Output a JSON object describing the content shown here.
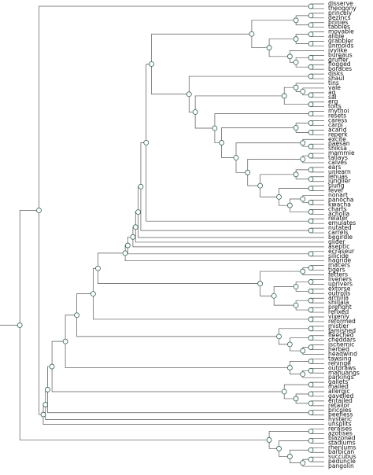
{
  "leaves": [
    "disserve",
    "theogony",
    "princely",
    "dezincs",
    "brinies",
    "tabbies",
    "movable",
    "alible",
    "grabbler",
    "unmolds",
    "ivylike",
    "bureaus",
    "gruffer",
    "flogged",
    "boraces",
    "disks",
    "shaul",
    "tins",
    "vale",
    "ag",
    "sal",
    "erg",
    "toits",
    "mythoi",
    "resets",
    "caress",
    "carpi",
    "acarid",
    "reperk",
    "excite",
    "paesan",
    "shiksa",
    "mammie",
    "tallays",
    "calves",
    "ears",
    "unlearn",
    "lehuas",
    "junglier",
    "slung",
    "fever",
    "nonart",
    "panocha",
    "kwacha",
    "charts",
    "acholia",
    "relater",
    "emulates",
    "nutated",
    "carrels",
    "begirdle",
    "glider",
    "aseptic",
    "ecraseur",
    "silicide",
    "hagride",
    "macers",
    "tigers",
    "fetters",
    "liveners",
    "uprivers",
    "extorse",
    "outrolls",
    "armilla",
    "shillala",
    "prefight",
    "refixed",
    "vixenly",
    "reformed",
    "mistier",
    "famished",
    "fleeched",
    "cheddars",
    "ischemic",
    "herbed",
    "headwind",
    "tawsing",
    "rehinge",
    "outdraws",
    "mahuangs",
    "parkings",
    "gallets",
    "mailed",
    "allergic",
    "gavelled",
    "entailed",
    "retailor",
    "bricoles",
    "beefless",
    "hysteric",
    "unsplits",
    "reraises",
    "azotises",
    "blazoned",
    "stadiums",
    "rhenlums",
    "barbican",
    "succubus",
    "peduncle",
    "pangolin"
  ]
}
